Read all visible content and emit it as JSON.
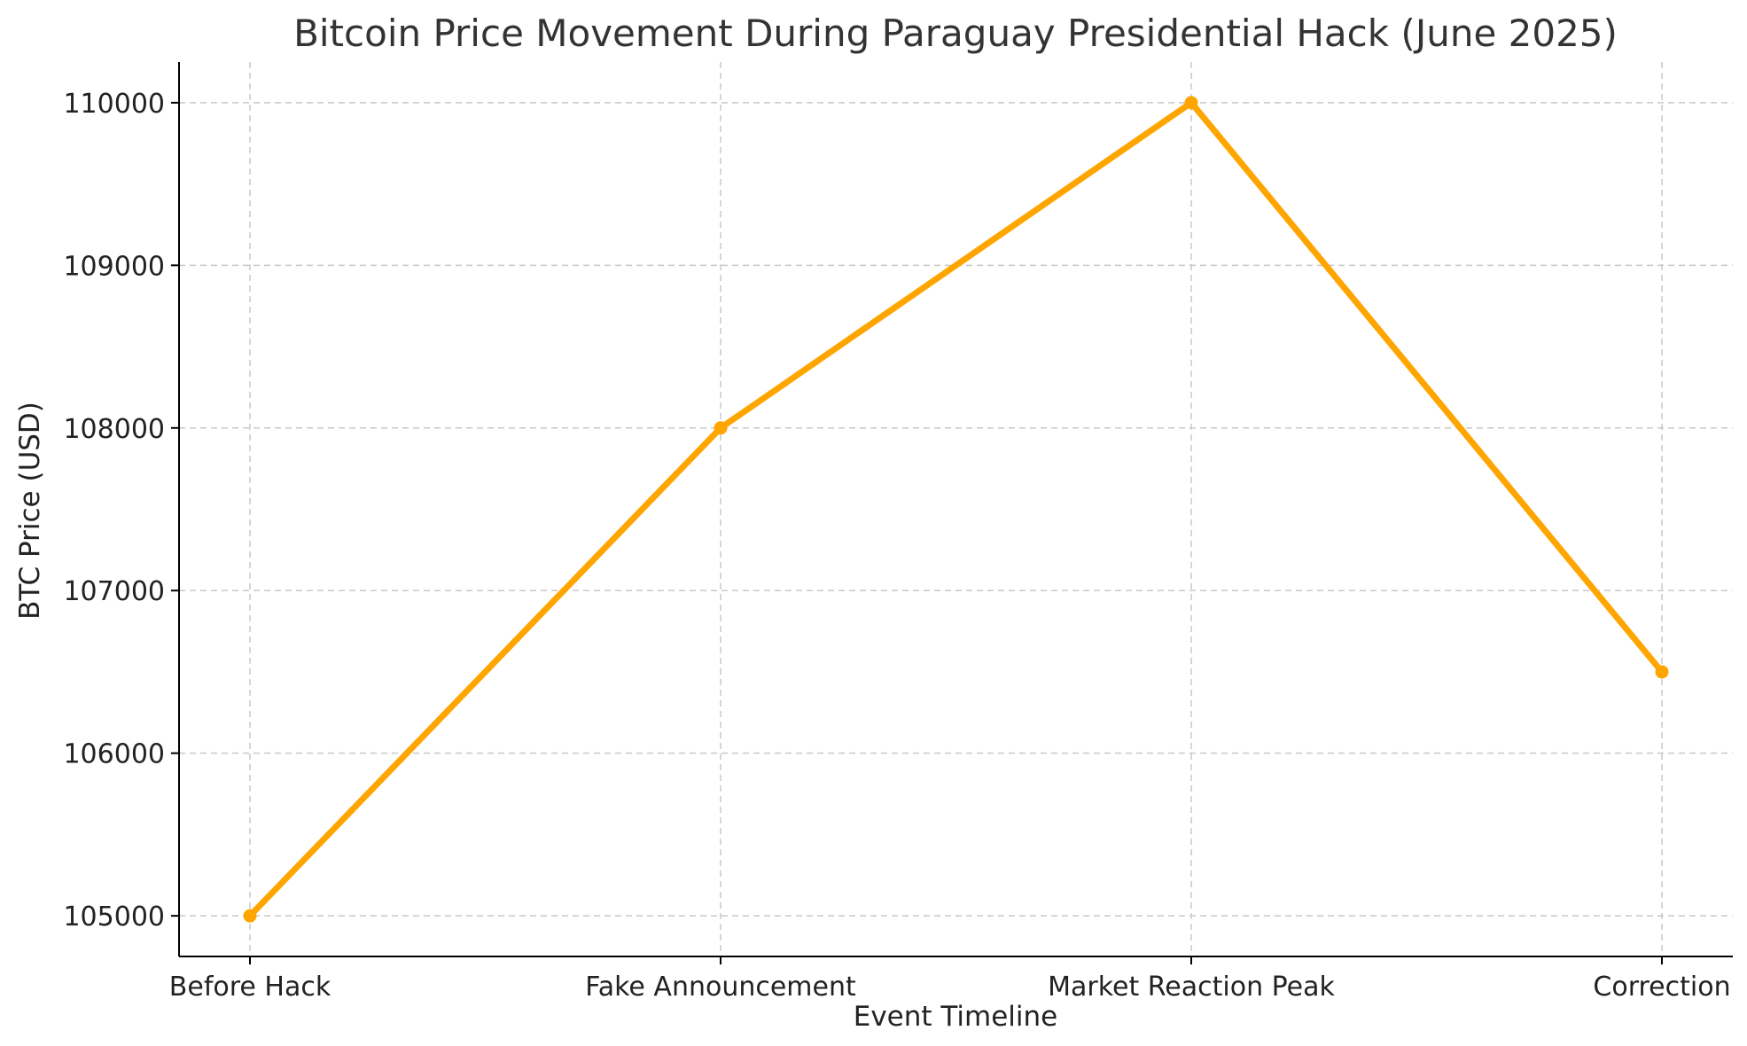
{
  "chart_data": {
    "type": "line",
    "title": "Bitcoin Price Movement During Paraguay Presidential Hack (June 2025)",
    "xlabel": "Event Timeline",
    "ylabel": "BTC Price (USD)",
    "categories": [
      "Before Hack",
      "Fake Announcement",
      "Market Reaction Peak",
      "Correction"
    ],
    "series": [
      {
        "values": [
          105000,
          108000,
          110000,
          106500
        ],
        "color": "#FFA500"
      }
    ],
    "y_ticks": [
      105000,
      106000,
      107000,
      108000,
      109000,
      110000
    ],
    "y_tick_labels": [
      "105000",
      "106000",
      "107000",
      "108000",
      "109000",
      "110000"
    ],
    "ylim": [
      104750,
      110250
    ],
    "grid": true,
    "grid_style": "dashed",
    "marker": "circle",
    "axis_color": "#000000",
    "grid_color": "#c8c8c8",
    "text_color": "#333333"
  }
}
